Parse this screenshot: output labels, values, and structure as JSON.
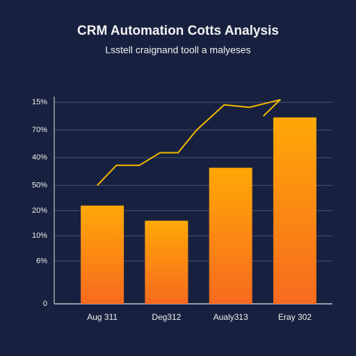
{
  "chart_data": {
    "type": "bar",
    "title": "CRM Automation Cotts Analysis",
    "subtitle": "Lsstell craignand tooll a malyeses",
    "categories": [
      "Aug 311",
      "Deg312",
      "Aualy313",
      "Eray 302"
    ],
    "series": [
      {
        "type": "bar",
        "color": "#ff9f0a",
        "values": [
          39,
          33,
          54,
          74
        ]
      },
      {
        "type": "line",
        "color": "#f5b800",
        "x": [
          -0.08,
          0.22,
          0.58,
          0.9,
          1.18,
          1.47,
          1.9,
          2.29,
          2.77,
          2.51
        ],
        "values": [
          47,
          55,
          55,
          60,
          60,
          69,
          79,
          78,
          81,
          74.5
        ]
      }
    ],
    "ylim": [
      0,
      85
    ],
    "yticks": [
      {
        "value": 80,
        "label": "15%"
      },
      {
        "value": 69,
        "label": "70%"
      },
      {
        "value": 58,
        "label": "40%"
      },
      {
        "value": 47,
        "label": "50%"
      },
      {
        "value": 37,
        "label": "20%"
      },
      {
        "value": 27,
        "label": "10%"
      },
      {
        "value": 17,
        "label": "6%"
      },
      0
    ],
    "grid": true
  }
}
